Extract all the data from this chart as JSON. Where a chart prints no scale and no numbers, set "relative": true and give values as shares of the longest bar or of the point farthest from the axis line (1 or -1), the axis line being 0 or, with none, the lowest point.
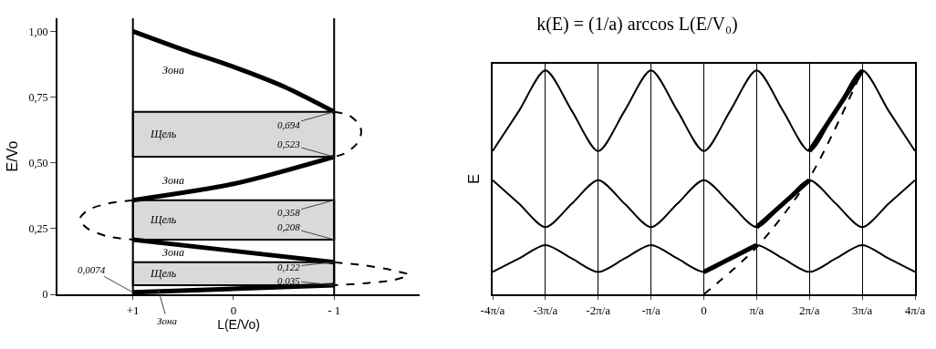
{
  "chart_data": [
    {
      "type": "line",
      "xlabel": "L(E/Vo)",
      "ylabel": "E/Vo",
      "xlim": [
        1.75,
        -1.85
      ],
      "ylim": [
        0,
        1.05
      ],
      "xticks": [
        {
          "value": 1,
          "label": "+1"
        },
        0,
        {
          "value": -1,
          "label": "- 1"
        }
      ],
      "yticks": [
        0,
        {
          "value": 0.25,
          "label": "0,25"
        },
        {
          "value": 0.5,
          "label": "0,50"
        },
        {
          "value": 0.75,
          "label": "0,75"
        },
        {
          "value": 1,
          "label": "1,00"
        }
      ],
      "series": [
        {
          "color": "#000000",
          "line_style": "solid",
          "x": [
            1,
            0.5,
            0,
            -0.5,
            -1
          ],
          "values": [
            1.0,
            0.93,
            0.865,
            0.79,
            0.694
          ]
        },
        {
          "color": "#000000",
          "line_style": "solid",
          "x": [
            -1,
            0,
            1
          ],
          "values": [
            0.523,
            0.42,
            0.358
          ]
        },
        {
          "color": "#000000",
          "line_style": "solid",
          "x": [
            1,
            0,
            -1
          ],
          "values": [
            0.208,
            0.165,
            0.122
          ]
        },
        {
          "color": "#000000",
          "line_style": "solid",
          "x": [
            -1,
            1
          ],
          "values": [
            0.035,
            0.0074
          ]
        },
        {
          "color": "#000000",
          "line_style": "dashed",
          "x": [
            -1,
            -1.15,
            -1.25,
            -1.27,
            -1.22,
            -1.1,
            -1
          ],
          "values": [
            0.694,
            0.68,
            0.645,
            0.615,
            0.57,
            0.535,
            0.523
          ]
        },
        {
          "color": "#000000",
          "line_style": "dashed",
          "x": [
            1,
            1.25,
            1.45,
            1.53,
            1.45,
            1.25,
            1
          ],
          "values": [
            0.358,
            0.345,
            0.32,
            0.285,
            0.25,
            0.22,
            0.208
          ]
        },
        {
          "color": "#000000",
          "line_style": "dashed",
          "x": [
            -1,
            -1.3,
            -1.6,
            -1.74,
            -1.6,
            -1.3,
            -1
          ],
          "values": [
            0.122,
            0.11,
            0.09,
            0.074,
            0.055,
            0.042,
            0.035
          ]
        }
      ],
      "bands": [
        {
          "axis": "y",
          "from": 0.523,
          "to": 0.694,
          "label": "Щель",
          "color": "#d9d9d9"
        },
        {
          "axis": "y",
          "from": 0.208,
          "to": 0.358,
          "label": "Щель",
          "color": "#d9d9d9"
        },
        {
          "axis": "y",
          "from": 0.035,
          "to": 0.122,
          "label": "Щель",
          "color": "#d9d9d9"
        }
      ],
      "ref_lines": [
        {
          "axis": "x",
          "value": 1
        },
        {
          "axis": "x",
          "value": -1
        }
      ],
      "annotations": [
        "Зона",
        "Зона",
        "Зона",
        {
          "text": "Зона",
          "x": 0.75,
          "y": 0.02
        },
        {
          "text": "0,694",
          "x": -1,
          "y": 0.694
        },
        {
          "text": "0,523",
          "x": -1,
          "y": 0.523
        },
        {
          "text": "0,358",
          "x": -1,
          "y": 0.358
        },
        {
          "text": "0,208",
          "x": -1,
          "y": 0.208
        },
        {
          "text": "0,122",
          "x": -1,
          "y": 0.122
        },
        {
          "text": "0,035",
          "x": -1,
          "y": 0.035
        },
        {
          "text": "0,0074",
          "x": 1,
          "y": 0.0074
        }
      ]
    },
    {
      "type": "line",
      "title": "k(E) = (1/a) arccos L(E/V₀)",
      "ylabel": "E",
      "relative": true,
      "xlim": [
        -4,
        4
      ],
      "xticks": [
        {
          "value": -4,
          "label": "-4π/a"
        },
        {
          "value": -3,
          "label": "-3π/a"
        },
        {
          "value": -2,
          "label": "-2π/a"
        },
        {
          "value": -1,
          "label": "-π/a"
        },
        0,
        {
          "value": 1,
          "label": "π/a"
        },
        {
          "value": 2,
          "label": "2π/a"
        },
        {
          "value": 3,
          "label": "3π/a"
        },
        {
          "value": 4,
          "label": "4π/a"
        }
      ],
      "grid": "x",
      "series": [
        {
          "color": "#000000",
          "line_style": "solid",
          "x": [
            -4,
            -3.5,
            -3,
            -2.5,
            -2,
            -1.5,
            -1,
            -0.5,
            0,
            0.5,
            1,
            1.5,
            2,
            2.5,
            3,
            3.5,
            4
          ],
          "values": [
            0.1,
            0.16,
            0.22,
            0.16,
            0.1,
            0.16,
            0.22,
            0.16,
            0.1,
            0.16,
            0.22,
            0.16,
            0.1,
            0.16,
            0.22,
            0.16,
            0.1
          ]
        },
        {
          "color": "#000000",
          "line_style": "solid",
          "x": [
            -4,
            -3.5,
            -3,
            -2.5,
            -2,
            -1.5,
            -1,
            -0.5,
            0,
            0.5,
            1,
            1.5,
            2,
            2.5,
            3,
            3.5,
            4
          ],
          "values": [
            0.51,
            0.405,
            0.3,
            0.405,
            0.51,
            0.405,
            0.3,
            0.405,
            0.51,
            0.405,
            0.3,
            0.405,
            0.51,
            0.405,
            0.3,
            0.405,
            0.51
          ]
        },
        {
          "color": "#000000",
          "line_style": "solid",
          "x": [
            -4,
            -3.5,
            -3,
            -2.5,
            -2,
            -1.5,
            -1,
            -0.5,
            0,
            0.5,
            1,
            1.5,
            2,
            2.5,
            3,
            3.5,
            4
          ],
          "values": [
            0.64,
            0.82,
            1,
            0.82,
            0.64,
            0.82,
            1,
            0.82,
            0.64,
            0.82,
            1,
            0.82,
            0.64,
            0.82,
            1,
            0.82,
            0.64
          ]
        },
        {
          "color": "#000000",
          "line_style": "solid",
          "x": [
            0,
            0.5,
            1
          ],
          "values": [
            0.1,
            0.16,
            0.22
          ]
        },
        {
          "color": "#000000",
          "line_style": "solid",
          "x": [
            1,
            1.5,
            2
          ],
          "values": [
            0.3,
            0.405,
            0.51
          ]
        },
        {
          "color": "#000000",
          "line_style": "solid",
          "x": [
            2,
            2.5,
            3
          ],
          "values": [
            0.64,
            0.82,
            1
          ]
        },
        {
          "color": "#000000",
          "line_style": "dashed",
          "x": [
            0,
            1,
            2,
            3
          ],
          "values": [
            0,
            0.21,
            0.52,
            1
          ]
        }
      ]
    }
  ]
}
